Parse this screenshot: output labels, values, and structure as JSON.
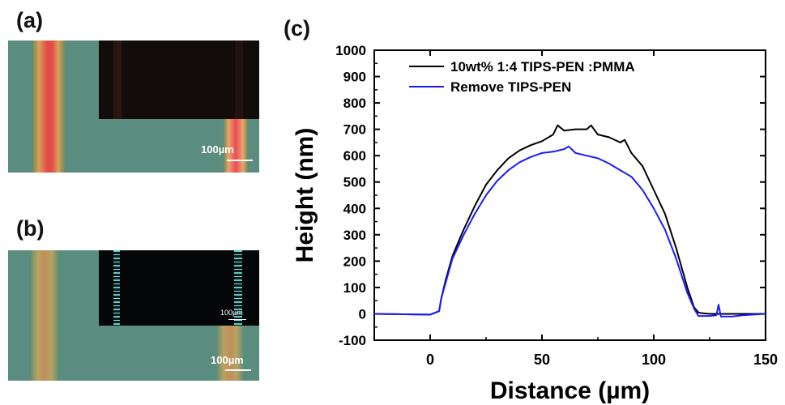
{
  "panels": {
    "a": {
      "label": "(a)",
      "scale_bar": "100µm"
    },
    "b": {
      "label": "(b)",
      "scale_bar": "100µm",
      "inset_scale_bar": "100µm"
    },
    "c": {
      "label": "(c)"
    }
  },
  "colors": {
    "optical_background": "#5b8c80",
    "stripe_a": "#e0524a",
    "stripe_b": "#b4a160",
    "inset_dark": "#120d0b",
    "series_black": "#000000",
    "series_blue": "#1a1aff"
  },
  "chart_data": {
    "type": "line",
    "title": "",
    "xlabel": "Distance (µm)",
    "ylabel": "Height (nm)",
    "xlim": [
      -25,
      150
    ],
    "ylim": [
      -100,
      1000
    ],
    "xticks": [
      0,
      50,
      100,
      150
    ],
    "yticks": [
      -100,
      0,
      100,
      200,
      300,
      400,
      500,
      600,
      700,
      800,
      900,
      1000
    ],
    "grid": false,
    "legend_position": "top-left",
    "series": [
      {
        "name": "10wt% 1:4  TIPS-PEN :PMMA",
        "color": "#000000",
        "x": [
          -25,
          0,
          4,
          5,
          7,
          10,
          15,
          20,
          25,
          30,
          35,
          40,
          45,
          50,
          55,
          57,
          60,
          65,
          70,
          72,
          75,
          80,
          85,
          87,
          90,
          95,
          100,
          105,
          110,
          115,
          118,
          120,
          122,
          125,
          130,
          135,
          140,
          150
        ],
        "y": [
          0,
          -3,
          10,
          60,
          130,
          220,
          320,
          410,
          490,
          545,
          590,
          620,
          640,
          655,
          680,
          715,
          695,
          700,
          700,
          715,
          680,
          670,
          650,
          660,
          610,
          560,
          470,
          380,
          250,
          100,
          25,
          5,
          2,
          0,
          0,
          0,
          0,
          0
        ]
      },
      {
        "name": "Remove TIPS-PEN",
        "color": "#1a1aff",
        "x": [
          -25,
          0,
          4,
          5,
          7,
          10,
          15,
          20,
          25,
          30,
          35,
          40,
          45,
          50,
          55,
          60,
          62,
          65,
          70,
          75,
          80,
          85,
          90,
          95,
          100,
          105,
          110,
          115,
          118,
          120,
          125,
          128,
          129,
          130,
          135,
          140,
          150
        ],
        "y": [
          0,
          -3,
          10,
          60,
          120,
          210,
          300,
          380,
          450,
          505,
          545,
          575,
          595,
          610,
          615,
          625,
          635,
          610,
          600,
          590,
          570,
          545,
          520,
          470,
          400,
          320,
          210,
          80,
          20,
          -8,
          -8,
          -5,
          35,
          -10,
          -10,
          -5,
          0
        ]
      }
    ]
  }
}
